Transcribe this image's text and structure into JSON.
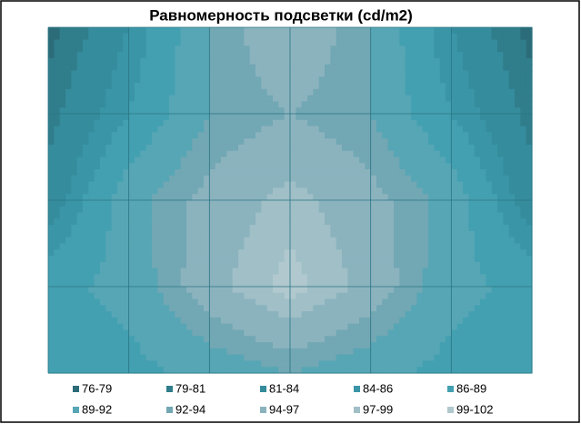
{
  "chart_data": {
    "type": "contour",
    "title": "Равномерность подсветки (cd/m2)",
    "levels": [
      76,
      79,
      81,
      84,
      86,
      89,
      92,
      94,
      97,
      99,
      102
    ],
    "series": [
      {
        "name": "76-79",
        "color": "#2c6c79"
      },
      {
        "name": "79-81",
        "color": "#307d8b"
      },
      {
        "name": "81-84",
        "color": "#358c9c"
      },
      {
        "name": "84-86",
        "color": "#3a96a7"
      },
      {
        "name": "86-89",
        "color": "#43a0b1"
      },
      {
        "name": "89-92",
        "color": "#57a6b5"
      },
      {
        "name": "92-94",
        "color": "#72a7b4"
      },
      {
        "name": "94-97",
        "color": "#8bb3be"
      },
      {
        "name": "97-99",
        "color": "#a0bfc7"
      },
      {
        "name": "99-102",
        "color": "#b0c8ce"
      }
    ],
    "z": [
      [
        78,
        84,
        92,
        97,
        92,
        84,
        78
      ],
      [
        80,
        86,
        92,
        94,
        92,
        86,
        80
      ],
      [
        82,
        91,
        95,
        98,
        95,
        91,
        82
      ],
      [
        88,
        90,
        96,
        100,
        96,
        90,
        88
      ],
      [
        87,
        88,
        90,
        92,
        90,
        88,
        87
      ]
    ]
  }
}
